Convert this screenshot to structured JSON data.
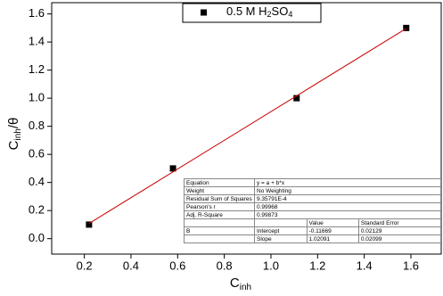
{
  "chart_data": {
    "type": "scatter",
    "x_label": {
      "text": "C",
      "sub": "inh"
    },
    "y_label": {
      "text": "C",
      "sub": "inh",
      "suffix": "/θ"
    },
    "series": [
      {
        "name": "0.5 M H2SO4",
        "color": "#000000",
        "marker": "square",
        "x": [
          0.22,
          0.58,
          1.11,
          1.58
        ],
        "values": [
          0.1,
          0.5,
          1.0,
          1.5
        ]
      },
      {
        "color": "#cc0000",
        "marker": "line",
        "x": [
          0.22,
          1.58
        ],
        "values": [
          0.1079,
          1.4963
        ]
      }
    ],
    "xlim": [
      0.06,
      1.73
    ],
    "ylim": [
      -0.11,
      1.68
    ],
    "xticks": [
      0.2,
      0.4,
      0.6,
      0.8,
      {
        "value": 1.0,
        "label": "1.0"
      },
      1.2,
      1.4,
      1.6
    ],
    "yticks": [
      {
        "value": 0.0,
        "label": "0.0"
      },
      0.2,
      0.4,
      0.6,
      0.8,
      {
        "value": 1.0,
        "label": "1.0"
      },
      1.2,
      1.4,
      1.6
    ],
    "legend": "top-center",
    "fit_table": {
      "rows": [
        [
          "Equation",
          "y = a + b*x"
        ],
        [
          "Weight",
          "No Weighting"
        ],
        [
          "Residual Sum of Squares",
          "9.35791E-4"
        ],
        [
          "Pearson's r",
          "0.99968"
        ],
        [
          "Adj. R-Square",
          "0.99873"
        ],
        [
          null,
          null,
          "Value",
          "Standard Error"
        ],
        [
          "B",
          "Intercept",
          "-0.11669",
          "0.02129"
        ],
        [
          null,
          "Slope",
          "1.02091",
          "0.02099"
        ]
      ]
    }
  }
}
